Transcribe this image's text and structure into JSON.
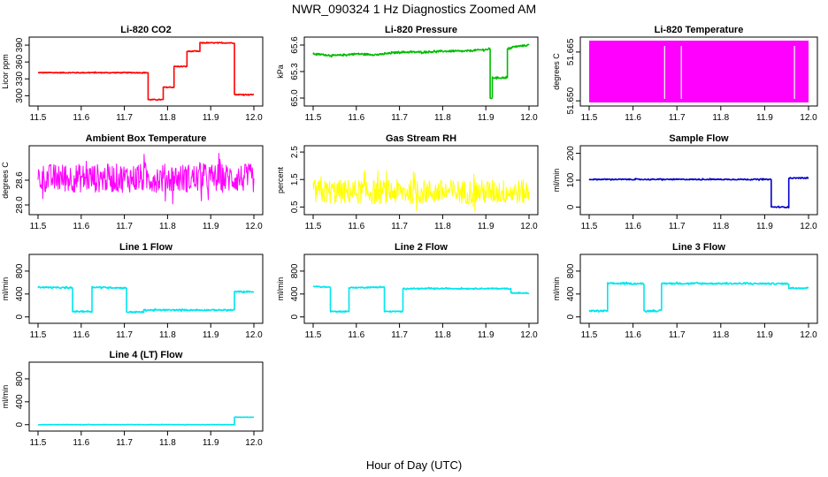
{
  "page": {
    "title": "NWR_090324  1 Hz Diagnostics Zoomed AM",
    "xlabel": "Hour of Day (UTC)"
  },
  "chart_data": [
    {
      "id": "co2",
      "type": "line",
      "title": "Li-820 CO2",
      "ylabel": "Licor ppm",
      "color": "#ff0000",
      "xlim": [
        11.5,
        12.0
      ],
      "ylim": [
        288,
        398
      ],
      "xticks": [
        "11.5",
        "11.6",
        "11.7",
        "11.8",
        "11.9",
        "12.0"
      ],
      "yticks": [
        {
          "v": 300,
          "l": "300"
        },
        {
          "v": 330,
          "l": "330"
        },
        {
          "v": 360,
          "l": "360"
        },
        {
          "v": 390,
          "l": "390"
        }
      ],
      "segments": [
        [
          11.5,
          341
        ],
        [
          11.755,
          341
        ],
        [
          11.755,
          293
        ],
        [
          11.79,
          293
        ],
        [
          11.79,
          315
        ],
        [
          11.815,
          315
        ],
        [
          11.815,
          352
        ],
        [
          11.845,
          352
        ],
        [
          11.845,
          379
        ],
        [
          11.875,
          379
        ],
        [
          11.875,
          394
        ],
        [
          11.955,
          394
        ],
        [
          11.955,
          302
        ],
        [
          12.0,
          302
        ]
      ],
      "noise": 0.8
    },
    {
      "id": "pressure",
      "type": "line",
      "title": "Li-820 Pressure",
      "ylabel": "kPa",
      "color": "#00bb00",
      "xlim": [
        11.5,
        12.0
      ],
      "ylim": [
        64.95,
        65.65
      ],
      "xticks": [
        "11.5",
        "11.6",
        "11.7",
        "11.8",
        "11.9",
        "12.0"
      ],
      "yticks": [
        {
          "v": 65.0,
          "l": "65.0"
        },
        {
          "v": 65.3,
          "l": "65.3"
        },
        {
          "v": 65.6,
          "l": "65.6"
        }
      ],
      "segments": [
        [
          11.5,
          65.5
        ],
        [
          11.55,
          65.48
        ],
        [
          11.6,
          65.5
        ],
        [
          11.65,
          65.49
        ],
        [
          11.7,
          65.52
        ],
        [
          11.75,
          65.52
        ],
        [
          11.8,
          65.53
        ],
        [
          11.85,
          65.53
        ],
        [
          11.9,
          65.55
        ],
        [
          11.91,
          65.55
        ],
        [
          11.91,
          65.0
        ],
        [
          11.915,
          65.0
        ],
        [
          11.915,
          65.23
        ],
        [
          11.95,
          65.23
        ],
        [
          11.95,
          65.55
        ],
        [
          11.965,
          65.58
        ],
        [
          12.0,
          65.6
        ]
      ],
      "noise": 0.01
    },
    {
      "id": "licor_temp",
      "type": "line",
      "title": "Li-820 Temperature",
      "ylabel": "degrees C",
      "color": "#ff00ff",
      "xlim": [
        11.5,
        12.0
      ],
      "ylim": [
        51.6495,
        51.6685
      ],
      "xticks": [
        "11.5",
        "11.6",
        "11.7",
        "11.8",
        "11.9",
        "12.0"
      ],
      "yticks": [
        {
          "v": 51.65,
          "l": "51.650"
        },
        {
          "v": 51.665,
          "l": "51.665"
        }
      ],
      "band": [
        51.6495,
        51.6685
      ],
      "gaps": [
        11.672,
        11.71,
        11.968
      ],
      "noise": 0
    },
    {
      "id": "box_temp",
      "type": "line",
      "title": "Ambient Box Temperature",
      "ylabel": "degrees C",
      "color": "#ff00ff",
      "xlim": [
        11.5,
        12.0
      ],
      "ylim": [
        27.85,
        29.35
      ],
      "xticks": [
        "11.5",
        "11.6",
        "11.7",
        "11.8",
        "11.9",
        "12.0"
      ],
      "yticks": [
        {
          "v": 28.0,
          "l": "28.0"
        },
        {
          "v": 28.6,
          "l": "28.6"
        }
      ],
      "segments": [
        [
          11.5,
          28.65
        ],
        [
          12.0,
          28.65
        ]
      ],
      "noise": 0.35
    },
    {
      "id": "rh",
      "type": "line",
      "title": "Gas Stream RH",
      "ylabel": "percent",
      "color": "#ffff00",
      "xlim": [
        11.5,
        12.0
      ],
      "ylim": [
        0.35,
        2.6
      ],
      "xticks": [
        "11.5",
        "11.6",
        "11.7",
        "11.8",
        "11.9",
        "12.0"
      ],
      "yticks": [
        {
          "v": 0.5,
          "l": "0.5"
        },
        {
          "v": 1.5,
          "l": "1.5"
        },
        {
          "v": 2.5,
          "l": "2.5"
        }
      ],
      "segments": [
        [
          11.5,
          1.05
        ],
        [
          12.0,
          1.05
        ]
      ],
      "noise": 0.45
    },
    {
      "id": "sample_flow",
      "type": "line",
      "title": "Sample Flow",
      "ylabel": "ml/min",
      "color": "#0000cc",
      "xlim": [
        11.5,
        12.0
      ],
      "ylim": [
        -15,
        215
      ],
      "xticks": [
        "11.5",
        "11.6",
        "11.7",
        "11.8",
        "11.9",
        "12.0"
      ],
      "yticks": [
        {
          "v": 0,
          "l": "0"
        },
        {
          "v": 100,
          "l": "100"
        },
        {
          "v": 200,
          "l": "200"
        }
      ],
      "segments": [
        [
          11.5,
          103
        ],
        [
          11.915,
          103
        ],
        [
          11.915,
          0
        ],
        [
          11.955,
          0
        ],
        [
          11.955,
          108
        ],
        [
          12.0,
          108
        ]
      ],
      "noise": 2
    },
    {
      "id": "line1",
      "type": "line",
      "title": "Line 1 Flow",
      "ylabel": "ml/min",
      "color": "#00e5ee",
      "xlim": [
        11.5,
        12.0
      ],
      "ylim": [
        -50,
        1030
      ],
      "xticks": [
        "11.5",
        "11.6",
        "11.7",
        "11.8",
        "11.9",
        "12.0"
      ],
      "yticks": [
        {
          "v": 0,
          "l": "0"
        },
        {
          "v": 400,
          "l": "400"
        },
        {
          "v": 800,
          "l": "800"
        }
      ],
      "segments": [
        [
          11.5,
          520
        ],
        [
          11.58,
          505
        ],
        [
          11.58,
          95
        ],
        [
          11.625,
          95
        ],
        [
          11.625,
          520
        ],
        [
          11.705,
          505
        ],
        [
          11.705,
          85
        ],
        [
          11.745,
          85
        ],
        [
          11.745,
          120
        ],
        [
          11.955,
          120
        ],
        [
          11.955,
          440
        ],
        [
          12.0,
          440
        ]
      ],
      "noise": 12
    },
    {
      "id": "line2",
      "type": "line",
      "title": "Line 2 Flow",
      "ylabel": "ml/min",
      "color": "#00e5ee",
      "xlim": [
        11.5,
        12.0
      ],
      "ylim": [
        -50,
        1030
      ],
      "xticks": [
        "11.5",
        "11.6",
        "11.7",
        "11.8",
        "11.9",
        "12.0"
      ],
      "yticks": [
        {
          "v": 0,
          "l": "0"
        },
        {
          "v": 400,
          "l": "400"
        },
        {
          "v": 800,
          "l": "800"
        }
      ],
      "segments": [
        [
          11.5,
          530
        ],
        [
          11.54,
          520
        ],
        [
          11.54,
          95
        ],
        [
          11.583,
          95
        ],
        [
          11.583,
          510
        ],
        [
          11.665,
          520
        ],
        [
          11.665,
          95
        ],
        [
          11.708,
          95
        ],
        [
          11.708,
          495
        ],
        [
          11.958,
          495
        ],
        [
          11.958,
          415
        ],
        [
          12.0,
          415
        ]
      ],
      "noise": 10
    },
    {
      "id": "line3",
      "type": "line",
      "title": "Line 3 Flow",
      "ylabel": "ml/min",
      "color": "#00e5ee",
      "xlim": [
        11.5,
        12.0
      ],
      "ylim": [
        -50,
        1030
      ],
      "xticks": [
        "11.5",
        "11.6",
        "11.7",
        "11.8",
        "11.9",
        "12.0"
      ],
      "yticks": [
        {
          "v": 0,
          "l": "0"
        },
        {
          "v": 400,
          "l": "400"
        },
        {
          "v": 800,
          "l": "800"
        }
      ],
      "segments": [
        [
          11.5,
          105
        ],
        [
          11.542,
          105
        ],
        [
          11.542,
          585
        ],
        [
          11.625,
          580
        ],
        [
          11.625,
          105
        ],
        [
          11.665,
          105
        ],
        [
          11.665,
          585
        ],
        [
          11.955,
          580
        ],
        [
          11.955,
          505
        ],
        [
          12.0,
          505
        ]
      ],
      "noise": 14
    },
    {
      "id": "line4",
      "type": "line",
      "title": "Line 4 (LT) Flow",
      "ylabel": "ml/min",
      "color": "#00e5ee",
      "xlim": [
        11.5,
        12.0
      ],
      "ylim": [
        -50,
        1030
      ],
      "xticks": [
        "11.5",
        "11.6",
        "11.7",
        "11.8",
        "11.9",
        "12.0"
      ],
      "yticks": [
        {
          "v": 0,
          "l": "0"
        },
        {
          "v": 400,
          "l": "400"
        },
        {
          "v": 800,
          "l": "800"
        }
      ],
      "segments": [
        [
          11.5,
          0
        ],
        [
          11.955,
          0
        ],
        [
          11.955,
          130
        ],
        [
          12.0,
          130
        ]
      ],
      "noise": 4
    }
  ]
}
